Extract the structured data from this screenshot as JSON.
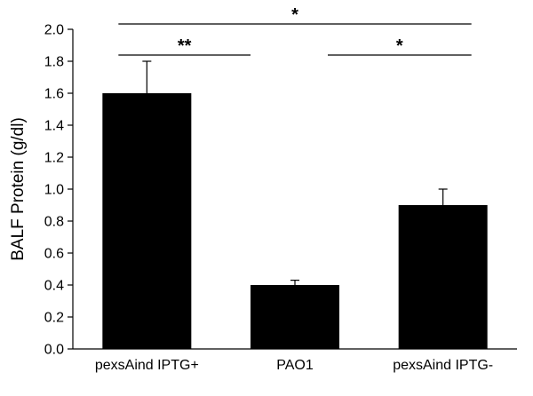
{
  "chart_data": {
    "type": "bar",
    "categories": [
      "pexsAind IPTG+",
      "PAO1",
      "pexsAind IPTG-"
    ],
    "values": [
      1.6,
      0.4,
      0.9
    ],
    "error": [
      0.2,
      0.03,
      0.1
    ],
    "ylabel": "BALF Protein (g/dl)",
    "xlabel": "",
    "ylim": [
      0.0,
      2.0
    ],
    "yticks": [
      "0.0",
      "0.2",
      "0.4",
      "0.6",
      "0.8",
      "1.0",
      "1.2",
      "1.4",
      "1.6",
      "1.8",
      "2.0"
    ],
    "grid": false,
    "bar_color": "#000000",
    "significance": [
      {
        "from": 0,
        "to": 2,
        "label": "*"
      },
      {
        "from": 0,
        "to": 1,
        "label": "**"
      },
      {
        "from": 1,
        "to": 2,
        "label": "*"
      }
    ]
  }
}
